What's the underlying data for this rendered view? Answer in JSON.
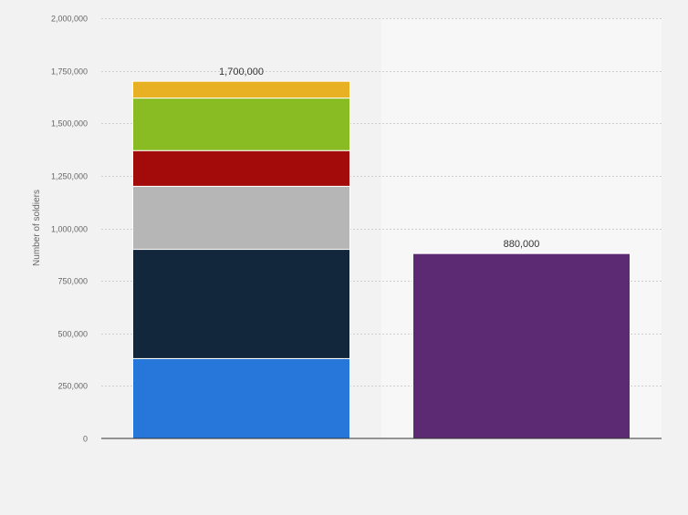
{
  "chart_data": {
    "type": "bar",
    "stacked": true,
    "ylabel": "Number of soldiers",
    "ylim": [
      0,
      2000000
    ],
    "y_ticks": [
      0,
      250000,
      500000,
      750000,
      1000000,
      1250000,
      1500000,
      1750000,
      2000000
    ],
    "y_tick_labels": [
      "0",
      "250,000",
      "500,000",
      "750,000",
      "1,000,000",
      "1,250,000",
      "1,500,000",
      "1,750,000",
      "2,000,000"
    ],
    "grid": true,
    "bars": [
      {
        "total_label": "1,700,000",
        "segments": [
          {
            "value": 380000,
            "color": "#2776d9"
          },
          {
            "value": 520000,
            "color": "#12263c"
          },
          {
            "value": 300000,
            "color": "#b6b6b6"
          },
          {
            "value": 170000,
            "color": "#a30b0b"
          },
          {
            "value": 250000,
            "color": "#89bb23"
          },
          {
            "value": 80000,
            "color": "#e8b123"
          }
        ]
      },
      {
        "total_label": "880,000",
        "segments": [
          {
            "value": 880000,
            "color": "#5c2a73"
          }
        ]
      }
    ]
  }
}
